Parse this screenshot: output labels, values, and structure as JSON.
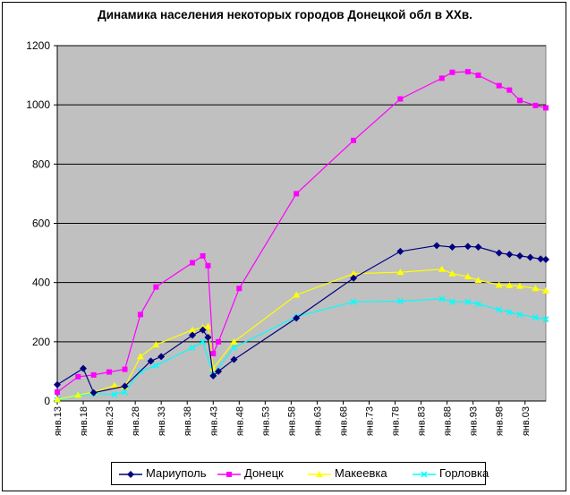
{
  "chart_data": {
    "type": "line",
    "title": "Динамика населения некоторых городов Донецкой обл в XXв.",
    "xlabel": "",
    "ylabel": "",
    "ylim": [
      0,
      1200
    ],
    "yticks": [
      0,
      200,
      400,
      600,
      800,
      1000,
      1200
    ],
    "xlim": [
      1913,
      2007
    ],
    "x_tick_labels": [
      {
        "year": 1913,
        "label": "янв.13"
      },
      {
        "year": 1918,
        "label": "янв.18"
      },
      {
        "year": 1923,
        "label": "янв.23"
      },
      {
        "year": 1928,
        "label": "янв.28"
      },
      {
        "year": 1933,
        "label": "янв.33"
      },
      {
        "year": 1938,
        "label": "янв.38"
      },
      {
        "year": 1943,
        "label": "янв.43"
      },
      {
        "year": 1948,
        "label": "янв.48"
      },
      {
        "year": 1953,
        "label": "янв.53"
      },
      {
        "year": 1958,
        "label": "янв.58"
      },
      {
        "year": 1963,
        "label": "янв.63"
      },
      {
        "year": 1968,
        "label": "янв.68"
      },
      {
        "year": 1973,
        "label": "янв.73"
      },
      {
        "year": 1978,
        "label": "янв.78"
      },
      {
        "year": 1983,
        "label": "янв.83"
      },
      {
        "year": 1988,
        "label": "янв.88"
      },
      {
        "year": 1993,
        "label": "янв.93"
      },
      {
        "year": 1998,
        "label": "янв.98"
      },
      {
        "year": 2003,
        "label": "янв.03"
      }
    ],
    "grid": true,
    "legend_position": "bottom",
    "plot_background": "#c0c0c0",
    "series": [
      {
        "name": "Мариуполь",
        "color": "#000080",
        "marker": "diamond",
        "x": [
          1913,
          1918,
          1920,
          1926,
          1931,
          1933,
          1939,
          1941,
          1942,
          1943,
          1944,
          1947,
          1959,
          1970,
          1979,
          1986,
          1989,
          1992,
          1994,
          1998,
          2000,
          2002,
          2004,
          2006,
          2007
        ],
        "y": [
          55,
          110,
          28,
          50,
          135,
          150,
          222,
          240,
          215,
          85,
          100,
          140,
          280,
          415,
          505,
          525,
          520,
          522,
          520,
          500,
          495,
          490,
          485,
          480,
          478
        ]
      },
      {
        "name": "Донецк",
        "color": "#ff00ff",
        "marker": "square",
        "x": [
          1913,
          1917,
          1920,
          1923,
          1926,
          1929,
          1932,
          1939,
          1941,
          1942,
          1943,
          1944,
          1948,
          1959,
          1970,
          1979,
          1987,
          1989,
          1992,
          1994,
          1998,
          2000,
          2002,
          2005,
          2007
        ],
        "y": [
          30,
          82,
          88,
          98,
          107,
          292,
          385,
          467,
          490,
          457,
          160,
          200,
          380,
          700,
          880,
          1020,
          1090,
          1110,
          1112,
          1100,
          1065,
          1050,
          1015,
          998,
          990
        ]
      },
      {
        "name": "Макеевка",
        "color": "#ffff00",
        "marker": "triangle",
        "x": [
          1913,
          1917,
          1920,
          1924,
          1926,
          1929,
          1932,
          1939,
          1941,
          1942,
          1943,
          1947,
          1959,
          1970,
          1979,
          1987,
          1989,
          1992,
          1994,
          1998,
          2000,
          2002,
          2005,
          2007
        ],
        "y": [
          5,
          20,
          30,
          52,
          48,
          150,
          190,
          240,
          248,
          252,
          110,
          200,
          358,
          430,
          435,
          445,
          430,
          420,
          408,
          392,
          390,
          388,
          380,
          372
        ]
      },
      {
        "name": "Горловка",
        "color": "#00ffff",
        "marker": "x",
        "x": [
          1913,
          1917,
          1920,
          1924,
          1926,
          1929,
          1932,
          1939,
          1941,
          1943,
          1947,
          1959,
          1970,
          1979,
          1987,
          1989,
          1992,
          1994,
          1998,
          2000,
          2002,
          2005,
          2007
        ],
        "y": [
          3,
          18,
          25,
          22,
          30,
          100,
          120,
          180,
          200,
          90,
          180,
          285,
          335,
          337,
          345,
          335,
          335,
          328,
          308,
          300,
          292,
          282,
          276
        ]
      }
    ]
  }
}
